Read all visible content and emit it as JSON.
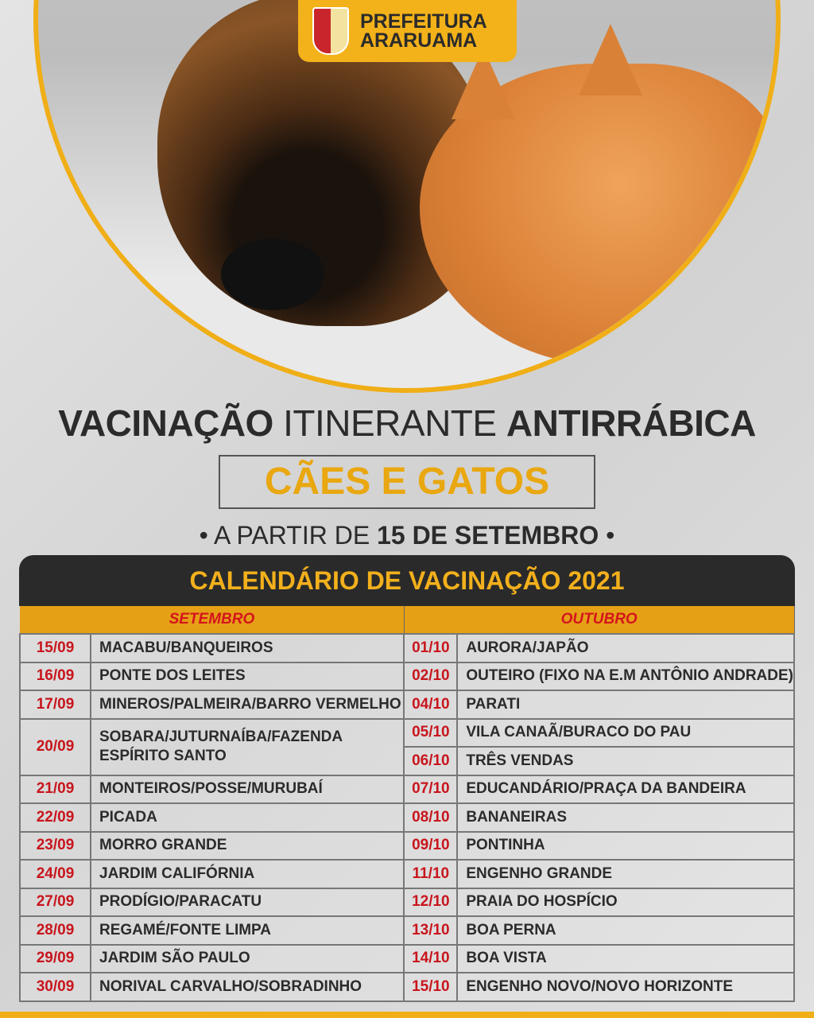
{
  "logo": {
    "line1": "PREFEITURA",
    "line2": "ARARUAMA"
  },
  "title": {
    "part1": "VACINAÇÃO",
    "part2": "ITINERANTE",
    "part3": "ANTIRRÁBICA"
  },
  "highlight": "CÃES E GATOS",
  "subtitle": {
    "prefix": "• A PARTIR DE",
    "date": "15 DE SETEMBRO",
    "suffix": "•"
  },
  "calendar": {
    "title": "CALENDÁRIO DE VACINAÇÃO 2021",
    "months": [
      "SETEMBRO",
      "OUTUBRO"
    ],
    "setembro": [
      {
        "date": "15/09",
        "place": "MACABU/BANQUEIROS"
      },
      {
        "date": "16/09",
        "place": "PONTE DOS LEITES"
      },
      {
        "date": "17/09",
        "place": "MINEROS/PALMEIRA/BARRO VERMELHO"
      },
      {
        "date": "20/09",
        "place": "SOBARA/JUTURNAÍBA/FAZENDA ESPÍRITO SANTO"
      },
      {
        "date": "21/09",
        "place": "MONTEIROS/POSSE/MURUBAÍ"
      },
      {
        "date": "22/09",
        "place": "PICADA"
      },
      {
        "date": "23/09",
        "place": "MORRO GRANDE"
      },
      {
        "date": "24/09",
        "place": "JARDIM  CALIFÓRNIA"
      },
      {
        "date": "27/09",
        "place": "PRODÍGIO/PARACATU"
      },
      {
        "date": "28/09",
        "place": "REGAMÉ/FONTE LIMPA"
      },
      {
        "date": "29/09",
        "place": "JARDIM SÃO PAULO"
      },
      {
        "date": "30/09",
        "place": "NORIVAL CARVALHO/SOBRADINHO"
      }
    ],
    "outubro": [
      {
        "date": "01/10",
        "place": "AURORA/JAPÃO"
      },
      {
        "date": "02/10",
        "place": "OUTEIRO (FIXO NA E.M ANTÔNIO ANDRADE)"
      },
      {
        "date": "04/10",
        "place": "PARATI"
      },
      {
        "date": "05/10",
        "place": "VILA CANAÃ/BURACO DO PAU"
      },
      {
        "date": "06/10",
        "place": "TRÊS VENDAS"
      },
      {
        "date": "07/10",
        "place": "EDUCANDÁRIO/PRAÇA DA BANDEIRA"
      },
      {
        "date": "08/10",
        "place": "BANANEIRAS"
      },
      {
        "date": "09/10",
        "place": "PONTINHA"
      },
      {
        "date": "11/10",
        "place": "ENGENHO GRANDE"
      },
      {
        "date": "12/10",
        "place": "PRAIA DO HOSPÍCIO"
      },
      {
        "date": "13/10",
        "place": "BOA PERNA"
      },
      {
        "date": "14/10",
        "place": "BOA VISTA"
      },
      {
        "date": "15/10",
        "place": "ENGENHO NOVO/NOVO HORIZONTE"
      }
    ]
  },
  "colors": {
    "accent": "#f0ae17",
    "date_red": "#c8151d",
    "dark": "#2a2a2a"
  }
}
